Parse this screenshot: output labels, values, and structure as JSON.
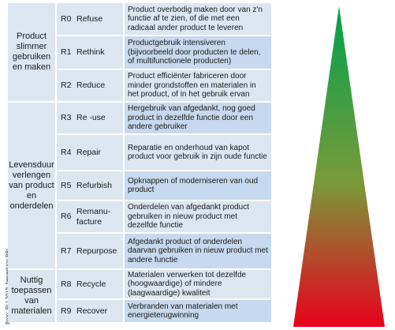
{
  "source": "Bron: RLI 2015; bewerking PBL",
  "groups": [
    {
      "label": "Product slimmer gebruiken en maken"
    },
    {
      "label": "Levensduur verlengen van product en onderdelen"
    },
    {
      "label": "Nuttig toepassen van materialen"
    }
  ],
  "rows": [
    {
      "code": "R0",
      "name": "Refuse",
      "desc": "Product overbodig maken door van z'n functie af te zien, of die met een radicaal ander product te leveren"
    },
    {
      "code": "R1",
      "name": "Rethink",
      "desc": "Productgebruik intensiveren (bijvoorbeeld door producten te delen, of multifunctionele producten)"
    },
    {
      "code": "R2",
      "name": "Reduce",
      "desc": "Product efficiënter fabriceren door minder grondstoffen en materialen in het product, of in het gebruik ervan"
    },
    {
      "code": "R3",
      "name": "Re -use",
      "desc": "Hergebruik van afgedankt, nog goed product in dezelfde functie door een andere gebruiker"
    },
    {
      "code": "R4",
      "name": "Repair",
      "desc": "Reparatie en onderhoud van kapot product voor gebruik in zijn oude functie"
    },
    {
      "code": "R5",
      "name": "Refurbish",
      "desc": "Opknappen of moderniseren van oud product"
    },
    {
      "code": "R6",
      "name": "Remanu-\nfacture",
      "desc": "Onderdelen  van afgedankt product gebruiken in nieuw product met dezelfde functie"
    },
    {
      "code": "R7",
      "name": "Repurpose",
      "desc": "Afgedankt product of onderdelen daarvan gebruiken in nieuw product met andere functie"
    },
    {
      "code": "R8",
      "name": "Recycle",
      "desc": "Materialen verwerken  tot  dezelfde (hoogwaardige) of mindere (laagwaardige) kwaliteit"
    },
    {
      "code": "R9",
      "name": "Recover",
      "desc": "Verbranden van materialen met energieterugwinning"
    }
  ],
  "colors": {
    "cell": "#dbe6f1",
    "cell_alt": "#c6d9ee",
    "top": "#00a14b",
    "middle": "#7a9a3a",
    "bottom": "#e8001c"
  }
}
